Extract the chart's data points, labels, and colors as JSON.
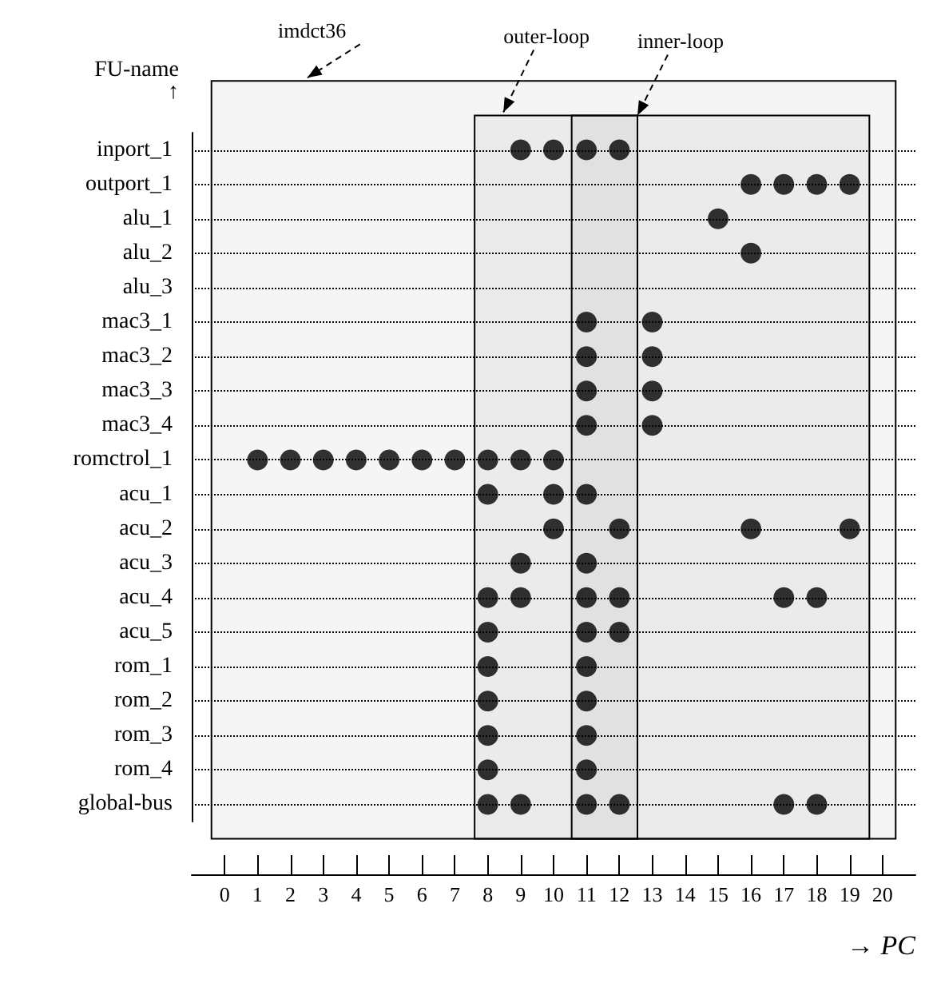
{
  "chart_data": {
    "type": "scatter",
    "orientation": "horizontal",
    "xlabel": "→ PC",
    "ylabel": "FU-name\n↑",
    "categories": [
      "inport_1",
      "outport_1",
      "alu_1",
      "alu_2",
      "alu_3",
      "mac3_1",
      "mac3_2",
      "mac3_3",
      "mac3_4",
      "romctrol_1",
      "acu_1",
      "acu_2",
      "acu_3",
      "acu_4",
      "acu_5",
      "rom_1",
      "rom_2",
      "rom_3",
      "rom_4",
      "global-bus"
    ],
    "series": [
      {
        "color": "#000000",
        "values": [
          9,
          16,
          15,
          16,
          null,
          11,
          11,
          11,
          11,
          1,
          8,
          10,
          9,
          8,
          8,
          8,
          8,
          8,
          8,
          8
        ]
      },
      {
        "color": "#000000",
        "values": [
          10,
          17,
          null,
          null,
          null,
          13,
          13,
          13,
          13,
          2,
          10,
          12,
          11,
          9,
          11,
          11,
          11,
          11,
          11,
          9
        ]
      },
      {
        "color": "#000000",
        "values": [
          11,
          18,
          null,
          null,
          null,
          null,
          null,
          null,
          null,
          3,
          11,
          16,
          null,
          11,
          12,
          null,
          null,
          null,
          null,
          11
        ]
      },
      {
        "color": "#000000",
        "values": [
          12,
          19,
          null,
          null,
          null,
          null,
          null,
          null,
          null,
          4,
          null,
          19,
          null,
          12,
          null,
          null,
          null,
          null,
          null,
          12
        ]
      },
      {
        "color": "#000000",
        "values": [
          null,
          null,
          null,
          null,
          null,
          null,
          null,
          null,
          null,
          5,
          null,
          null,
          null,
          17,
          null,
          null,
          null,
          null,
          null,
          17
        ]
      },
      {
        "color": "#000000",
        "values": [
          null,
          null,
          null,
          null,
          null,
          null,
          null,
          null,
          null,
          6,
          null,
          null,
          null,
          18,
          null,
          null,
          null,
          null,
          null,
          18
        ]
      },
      {
        "color": "#000000",
        "values": [
          null,
          null,
          null,
          null,
          null,
          null,
          null,
          null,
          null,
          7,
          null,
          null,
          null,
          null,
          null,
          null,
          null,
          null,
          null,
          null
        ]
      },
      {
        "color": "#000000",
        "values": [
          null,
          null,
          null,
          null,
          null,
          null,
          null,
          null,
          null,
          8,
          null,
          null,
          null,
          null,
          null,
          null,
          null,
          null,
          null,
          null
        ]
      },
      {
        "color": "#000000",
        "values": [
          null,
          null,
          null,
          null,
          null,
          null,
          null,
          null,
          null,
          9,
          null,
          null,
          null,
          null,
          null,
          null,
          null,
          null,
          null,
          null
        ]
      },
      {
        "color": "#000000",
        "values": [
          null,
          null,
          null,
          null,
          null,
          null,
          null,
          null,
          null,
          10,
          null,
          null,
          null,
          null,
          null,
          null,
          null,
          null,
          null,
          null
        ]
      }
    ],
    "xlim": [
      -1,
      21
    ],
    "xticks": [
      0,
      1,
      2,
      3,
      4,
      5,
      6,
      7,
      8,
      9,
      10,
      11,
      12,
      13,
      14,
      15,
      16,
      17,
      18,
      19,
      20
    ],
    "bands": [
      {
        "axis": "x",
        "from": -0.4,
        "to": 20.4,
        "label": "imdct36",
        "color": "#000000"
      },
      {
        "axis": "x",
        "from": 7.6,
        "to": 19.6,
        "label": "outer-loop",
        "color": "#000000"
      },
      {
        "axis": "x",
        "from": 10.55,
        "to": 12.55,
        "label": "inner-loop",
        "color": "#000000"
      }
    ],
    "grid": "y",
    "marker": "circle"
  }
}
